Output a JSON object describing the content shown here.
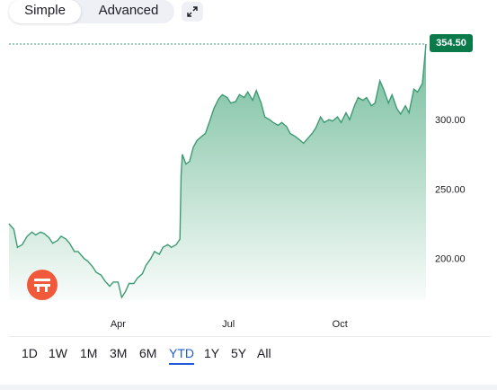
{
  "mode_switch": {
    "simple_label": "Simple",
    "advanced_label": "Advanced",
    "active": "Simple"
  },
  "icons": {
    "expand": "expand-icon",
    "logo": "brand-logo-icon"
  },
  "colors": {
    "line": "#3d9b73",
    "fill_top": "#6cb996",
    "price_tag_bg": "#0b7a4b",
    "active_range": "#1f5bd6",
    "logo_bg": "#f05a3a"
  },
  "price_tag": "354.50",
  "ranges": [
    "1D",
    "1W",
    "1M",
    "3M",
    "6M",
    "YTD",
    "1Y",
    "5Y",
    "All"
  ],
  "active_range": "YTD",
  "chart_data": {
    "type": "area",
    "title": "",
    "xlabel": "",
    "ylabel": "",
    "x_ticks": [
      "Apr",
      "Jul",
      "Oct"
    ],
    "y_ticks": [
      "200.00",
      "250.00",
      "300.00"
    ],
    "ylim": [
      170,
      354.5
    ],
    "last_value": 354.5,
    "grid": false,
    "series": [
      {
        "points": [
          [
            "Jan 2",
            225
          ],
          [
            "Jan 6",
            221
          ],
          [
            "Jan 9",
            208
          ],
          [
            "Jan 13",
            210
          ],
          [
            "Jan 17",
            216
          ],
          [
            "Jan 21",
            219
          ],
          [
            "Jan 24",
            217
          ],
          [
            "Jan 28",
            219
          ],
          [
            "Jan 31",
            218
          ],
          [
            "Feb 4",
            215
          ],
          [
            "Feb 7",
            211
          ],
          [
            "Feb 11",
            213
          ],
          [
            "Feb 14",
            216
          ],
          [
            "Feb 18",
            214
          ],
          [
            "Feb 21",
            211
          ],
          [
            "Feb 25",
            205
          ],
          [
            "Feb 28",
            205
          ],
          [
            "Mar 4",
            200
          ],
          [
            "Mar 7",
            198
          ],
          [
            "Mar 11",
            194
          ],
          [
            "Mar 14",
            190
          ],
          [
            "Mar 18",
            188
          ],
          [
            "Mar 21",
            184
          ],
          [
            "Mar 25",
            180
          ],
          [
            "Mar 28",
            183
          ],
          [
            "Apr 1",
            183
          ],
          [
            "Apr 4",
            172
          ],
          [
            "Apr 7",
            176
          ],
          [
            "Apr 10",
            182
          ],
          [
            "Apr 14",
            182
          ],
          [
            "Apr 17",
            186
          ],
          [
            "Apr 21",
            189
          ],
          [
            "Apr 24",
            195
          ],
          [
            "Apr 28",
            200
          ],
          [
            "May 1",
            205
          ],
          [
            "May 5",
            203
          ],
          [
            "May 8",
            208
          ],
          [
            "May 12",
            210
          ],
          [
            "May 15",
            208
          ],
          [
            "May 19",
            210
          ],
          [
            "May 22",
            214
          ],
          [
            "May 23",
            260
          ],
          [
            "May 24",
            275
          ],
          [
            "May 27",
            268
          ],
          [
            "May 30",
            270
          ],
          [
            "Jun 2",
            280
          ],
          [
            "Jun 5",
            285
          ],
          [
            "Jun 9",
            288
          ],
          [
            "Jun 12",
            290
          ],
          [
            "Jun 16",
            300
          ],
          [
            "Jun 19",
            308
          ],
          [
            "Jun 23",
            315
          ],
          [
            "Jun 26",
            318
          ],
          [
            "Jun 30",
            316
          ],
          [
            "Jul 3",
            312
          ],
          [
            "Jul 7",
            313
          ],
          [
            "Jul 10",
            318
          ],
          [
            "Jul 14",
            316
          ],
          [
            "Jul 17",
            320
          ],
          [
            "Jul 21",
            314
          ],
          [
            "Jul 24",
            321
          ],
          [
            "Jul 28",
            312
          ],
          [
            "Jul 31",
            302
          ],
          [
            "Aug 4",
            300
          ],
          [
            "Aug 7",
            298
          ],
          [
            "Aug 11",
            296
          ],
          [
            "Aug 14",
            298
          ],
          [
            "Aug 18",
            295
          ],
          [
            "Aug 21",
            290
          ],
          [
            "Aug 25",
            288
          ],
          [
            "Aug 28",
            286
          ],
          [
            "Sep 1",
            283
          ],
          [
            "Sep 4",
            286
          ],
          [
            "Sep 8",
            290
          ],
          [
            "Sep 11",
            294
          ],
          [
            "Sep 15",
            302
          ],
          [
            "Sep 18",
            298
          ],
          [
            "Sep 22",
            300
          ],
          [
            "Sep 25",
            299
          ],
          [
            "Sep 29",
            302
          ],
          [
            "Oct 2",
            298
          ],
          [
            "Oct 6",
            305
          ],
          [
            "Oct 9",
            300
          ],
          [
            "Oct 13",
            310
          ],
          [
            "Oct 16",
            316
          ],
          [
            "Oct 20",
            314
          ],
          [
            "Oct 23",
            316
          ],
          [
            "Oct 27",
            310
          ],
          [
            "Oct 30",
            312
          ],
          [
            "Nov 3",
            328
          ],
          [
            "Nov 6",
            322
          ],
          [
            "Nov 10",
            312
          ],
          [
            "Nov 13",
            318
          ],
          [
            "Nov 17",
            308
          ],
          [
            "Nov 20",
            304
          ],
          [
            "Nov 24",
            310
          ],
          [
            "Nov 27",
            305
          ],
          [
            "Dec 1",
            322
          ],
          [
            "Dec 4",
            320
          ],
          [
            "Dec 8",
            326
          ],
          [
            "Dec 11",
            354.5
          ]
        ]
      }
    ]
  }
}
